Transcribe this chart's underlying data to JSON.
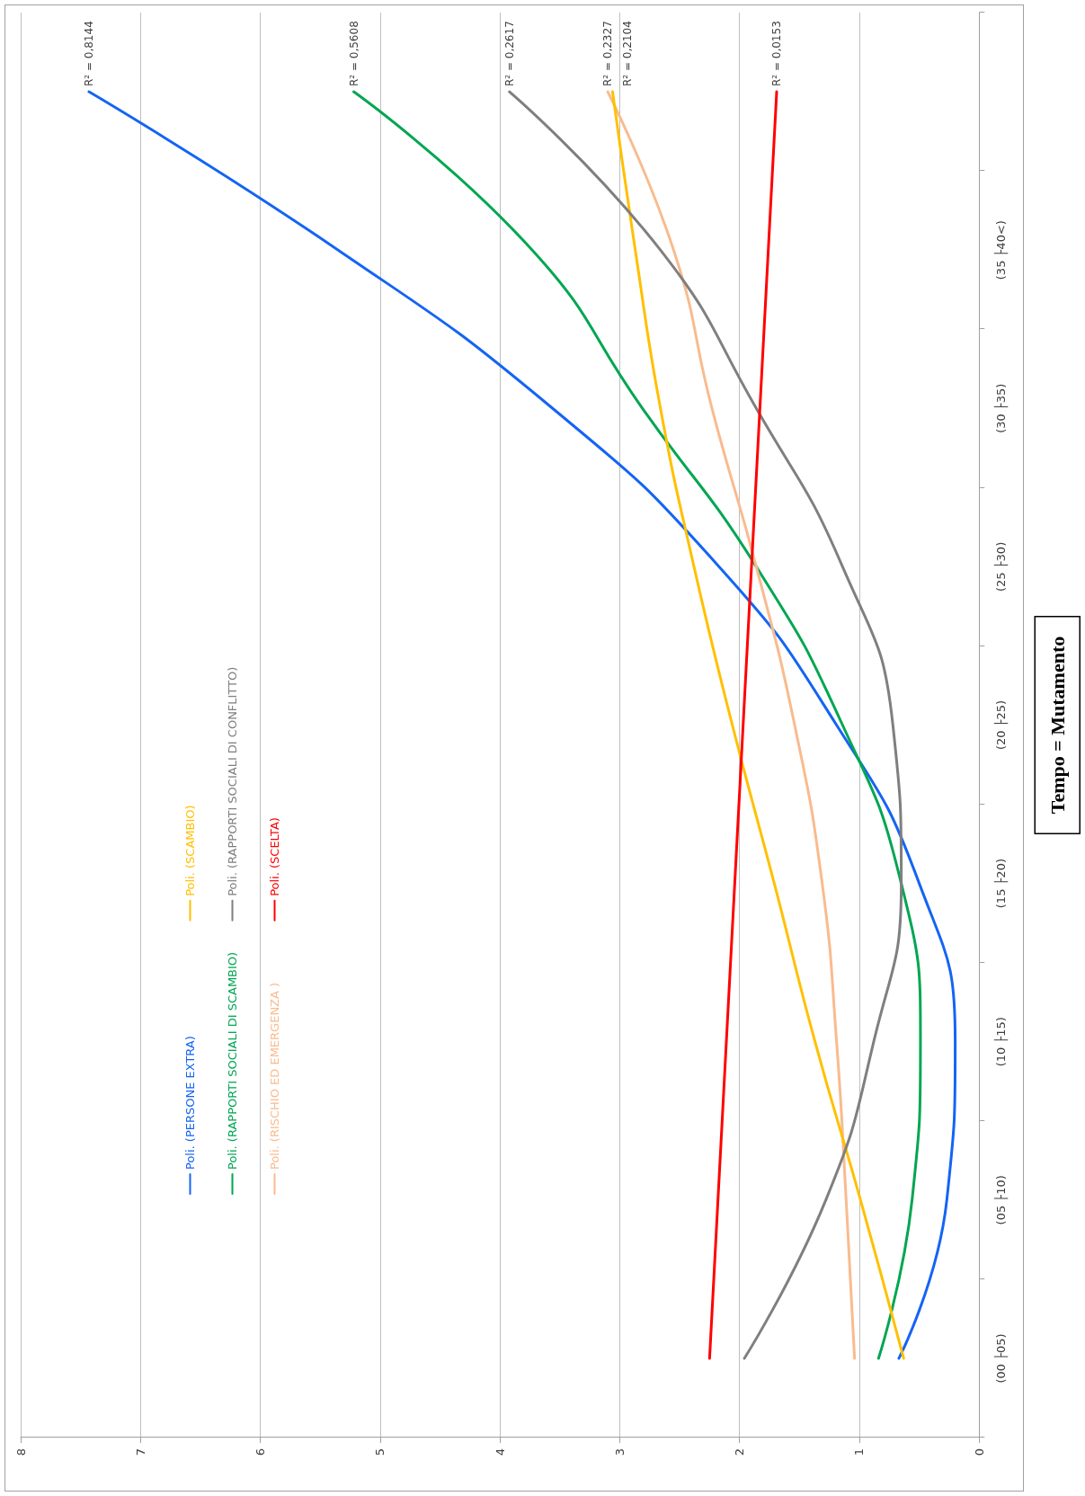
{
  "chart_data": {
    "type": "line",
    "orientation": "horizontal",
    "ylabel": "Tempo = Mutamento",
    "categories": [
      null,
      "(35 ├40<)",
      "(30 ├35)",
      "(25 ├30)",
      "(20 ├25)",
      "(15 ├20)",
      "(10 ├15)",
      "(05 ├10)",
      "(00 ├05)"
    ],
    "series": [
      {
        "name": "Poli. (PERSONE EXTRA)",
        "color": "#1464f4",
        "values": [
          7.43,
          5.35,
          3.56,
          2.17,
          1.19,
          0.5,
          0.2,
          0.27,
          0.67
        ]
      },
      {
        "name": "Poli. (RAPPORTI SOCIALI DI SCAMBIO)",
        "color": "#00a651",
        "values": [
          5.22,
          3.73,
          2.81,
          1.86,
          1.14,
          0.65,
          0.49,
          0.56,
          0.84
        ]
      },
      {
        "name": "Poli. (RISCHIO ED EMERGENZA )",
        "color": "#f9bb8f",
        "values": [
          3.1,
          2.55,
          2.23,
          1.86,
          1.54,
          1.31,
          1.19,
          1.11,
          1.04
        ]
      },
      {
        "name": "Poli. (SCAMBIO)",
        "color": "#ffc000",
        "values": [
          3.06,
          2.87,
          2.66,
          2.38,
          2.06,
          1.71,
          1.37,
          0.99,
          0.63
        ]
      },
      {
        "name": "Poli. (RAPPORTI SOCIALI DI CONFLITTO)",
        "color": "#7f7f7f",
        "values": [
          3.92,
          2.66,
          1.86,
          1.14,
          0.72,
          0.65,
          0.88,
          1.28,
          1.96
        ]
      },
      {
        "name": "Poli. (SCELTA)",
        "color": "#ff0000",
        "values": [
          1.69,
          1.76,
          1.83,
          1.9,
          1.97,
          2.04,
          2.11,
          2.18,
          2.25
        ]
      }
    ],
    "xlim": [
      8,
      0
    ],
    "xticks": [
      8,
      7,
      6,
      5,
      4,
      3,
      2,
      1,
      0
    ],
    "grid": "x",
    "legend": "bottom left",
    "marker": "none",
    "line_style": "solid",
    "annotations": [
      "R² = 0,8144",
      "R² = 0,5608",
      "R² = 0,2327",
      "R² = 0,2104",
      "R² = 0,2617",
      "R² = 0,0153"
    ]
  }
}
